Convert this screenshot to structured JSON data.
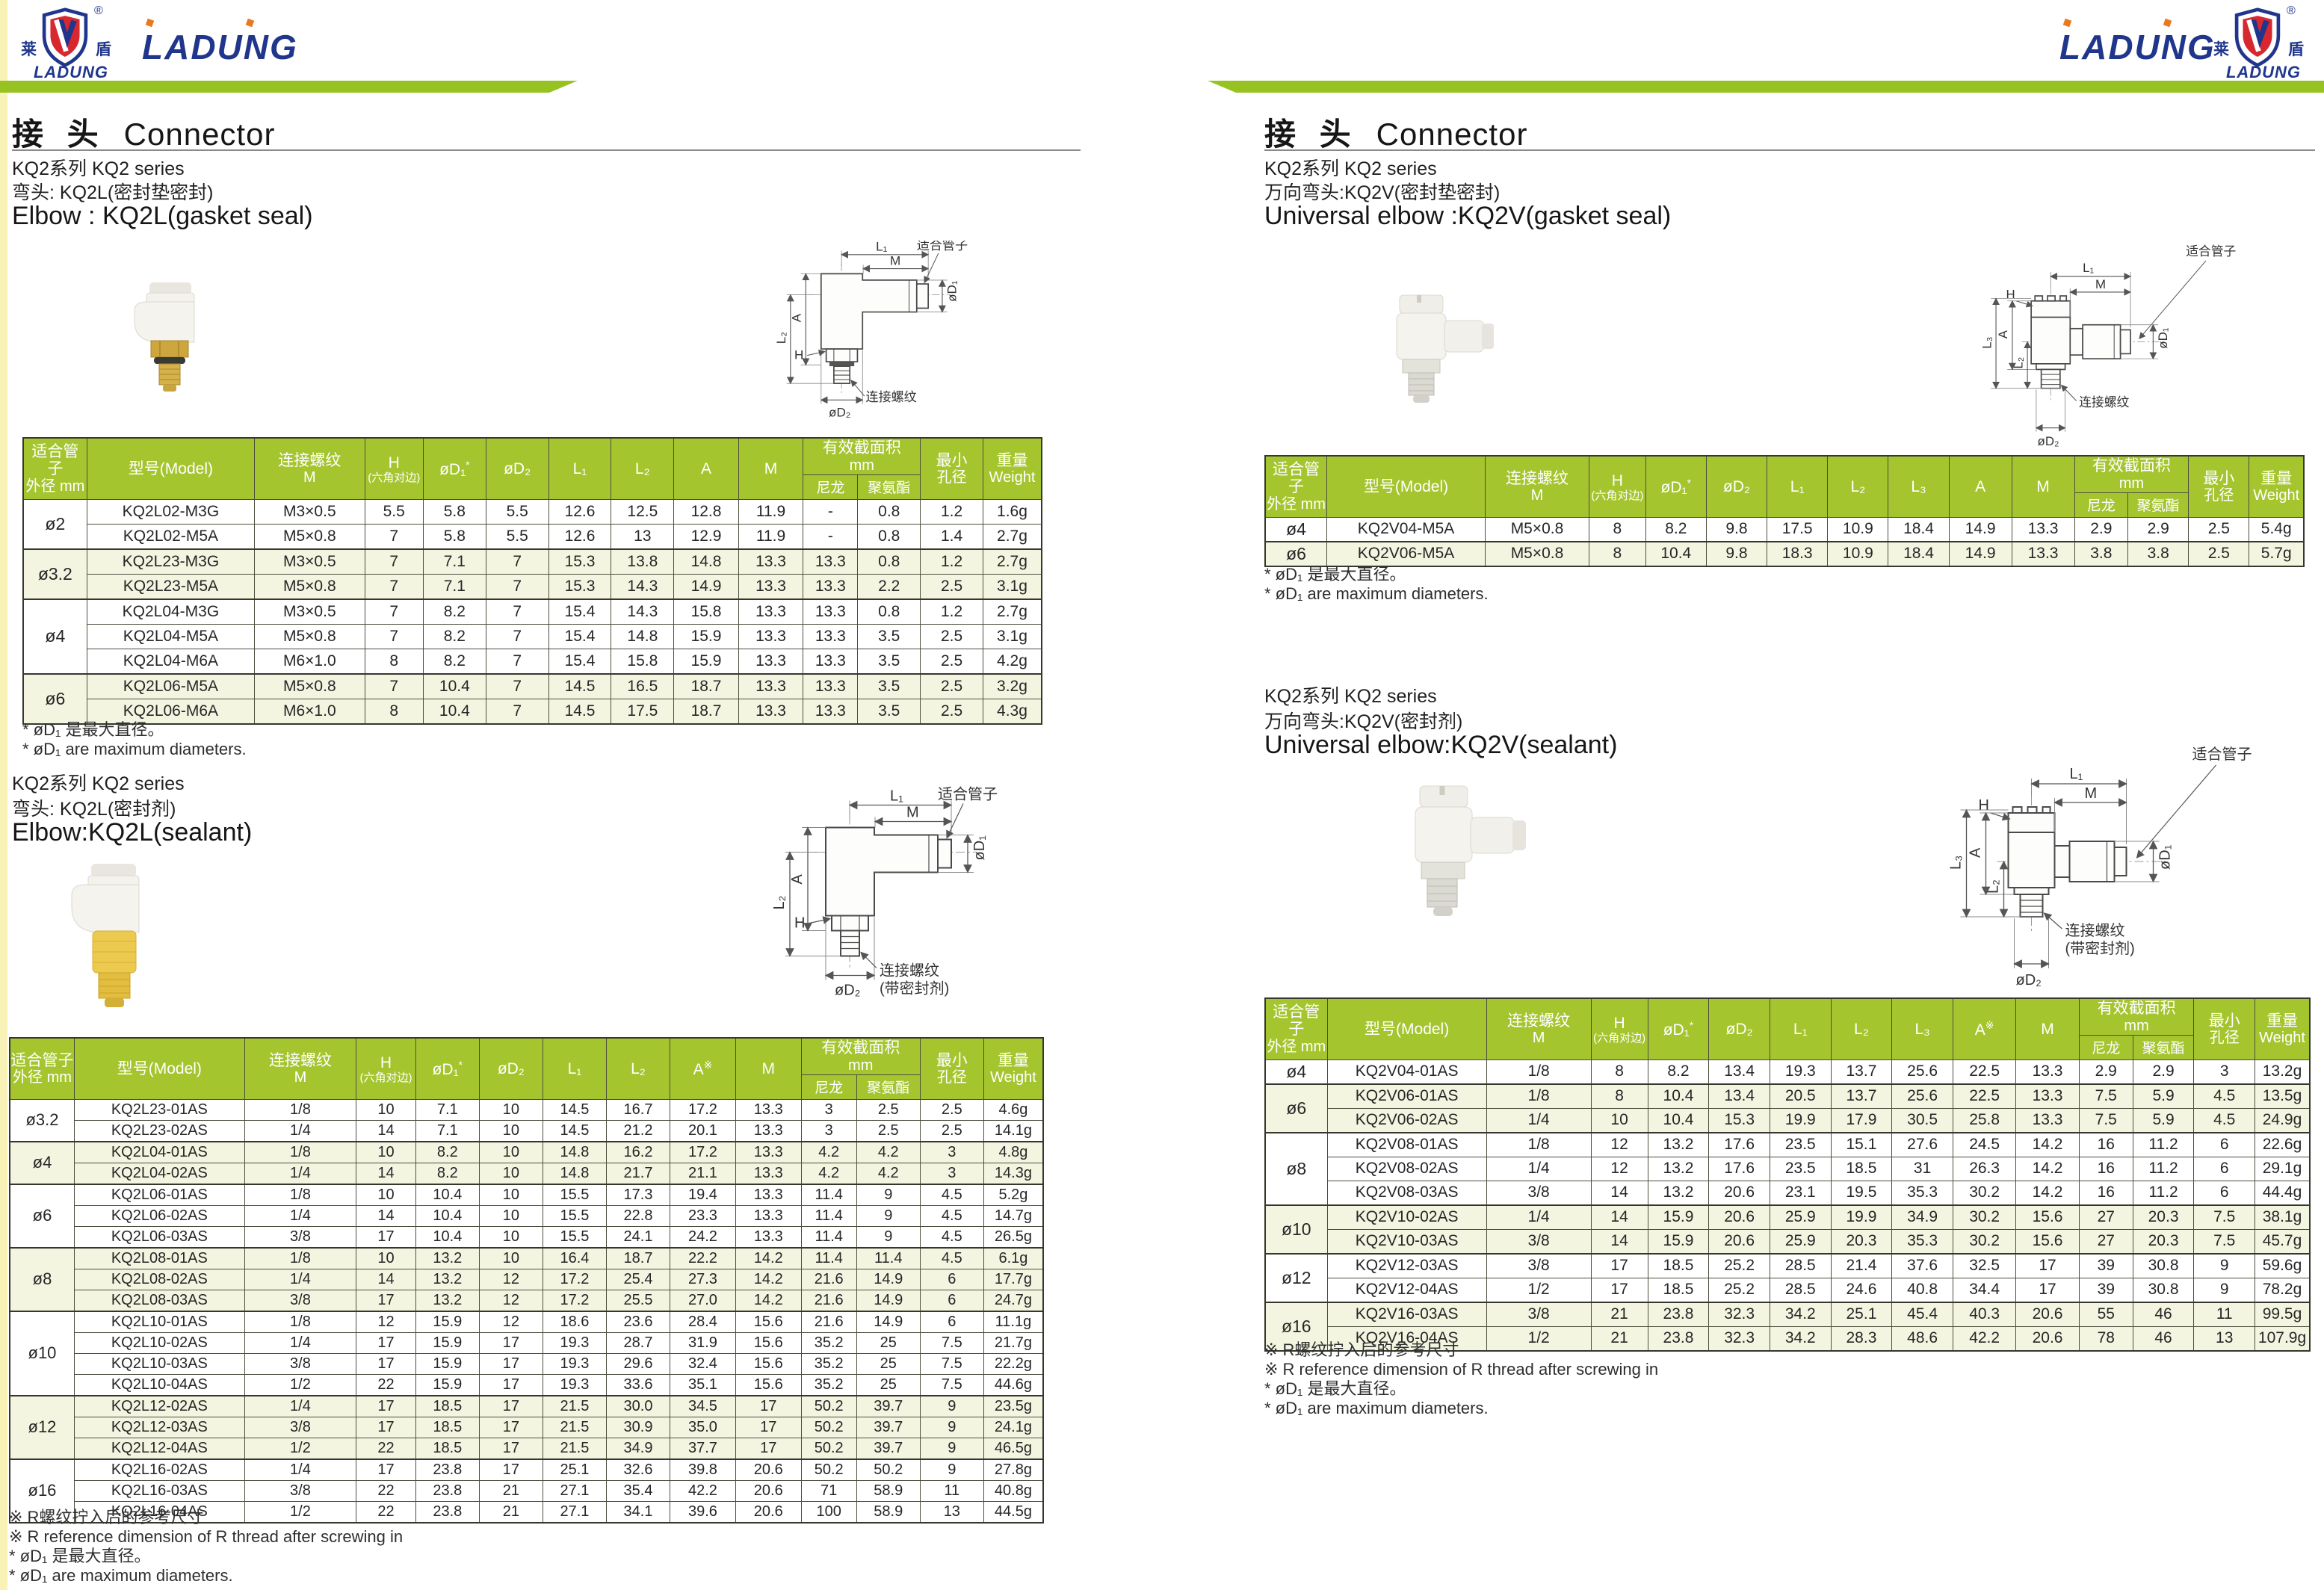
{
  "brand": {
    "cn_left": "莱",
    "cn_right": "盾",
    "shield_name": "LADUNG",
    "reg": "®",
    "wordmark": "LADUNG"
  },
  "colors": {
    "table_header_green": "#a5c52f",
    "bar_green": "#97c322",
    "row_alt": "#f4f5e1",
    "logo_blue": "#20368c",
    "logo_orange": "#e87a1e",
    "logo_red": "#d7282f"
  },
  "left_page": {
    "title_cn": "接 头",
    "title_en": "Connector",
    "s1": {
      "series": "KQ2系列   KQ2 series",
      "type": "弯头: KQ2L(密封垫密封)",
      "heading": "Elbow : KQ2L(gasket seal)",
      "notes": [
        "* øD₁ 是最大直径。",
        "* øD₁ are maximum diameters."
      ]
    },
    "s2": {
      "series": "KQ2系列   KQ2 series",
      "type": "弯头: KQ2L(密封剂)",
      "heading": "Elbow:KQ2L(sealant)",
      "notes": [
        "※ R螺纹拧入后的参考尺寸",
        "※ R reference dimension of R thread after screwing in",
        "* øD₁ 是最大直径。",
        "* øD₁ are maximum diameters."
      ]
    }
  },
  "right_page": {
    "title_cn": "接 头",
    "title_en": "Connector",
    "s1": {
      "series": "KQ2系列   KQ2 series",
      "type": "万向弯头:KQ2V(密封垫密封)",
      "heading": "Universal elbow :KQ2V(gasket seal)",
      "notes": [
        "* øD₁ 是最大直径。",
        "* øD₁ are maximum diameters."
      ]
    },
    "s2": {
      "series": "KQ2系列   KQ2 series",
      "type": "万向弯头:KQ2V(密封剂)",
      "heading": "Universal elbow:KQ2V(sealant)",
      "notes": [
        "※ R螺纹拧入后的参考尺寸",
        "※ R reference dimension of R thread after screwing in",
        "* øD₁ 是最大直径。",
        "* øD₁ are maximum diameters."
      ]
    }
  },
  "drawing": {
    "fit_tube": "适合管子",
    "thread": "连接螺纹",
    "sealant_note": "(带密封剂)",
    "L1": "L₁",
    "L2": "L₂",
    "L3": "L₃",
    "A": "A",
    "M": "M",
    "H": "H",
    "D1": "øD₁",
    "D2": "øD₂"
  },
  "header_labels": {
    "tube1": "适合管子",
    "tube2": "外径 mm",
    "model": "型号(Model)",
    "thread1": "连接螺纹",
    "thread2": "M",
    "h1": "H",
    "h2": "(六角对边)",
    "d1": "øD₁",
    "star": "*",
    "d2": "øD₂",
    "l1": "L₁",
    "l2": "L₂",
    "l3": "L₃",
    "a": "A",
    "refmark": "※",
    "m": "M",
    "eff1": "有效截面积",
    "eff2": "mm",
    "nylon": "尼龙",
    "pu": "聚氨酯",
    "min1": "最小",
    "min2": "孔径",
    "w1": "重量",
    "w2": "Weight"
  },
  "tables": {
    "left_gasket": {
      "l3": false,
      "a_sup": false,
      "groups": [
        {
          "size": "ø2",
          "rows": [
            [
              "KQ2L02-M3G",
              "M3×0.5",
              "5.5",
              "5.8",
              "5.5",
              "12.6",
              "12.5",
              "12.8",
              "11.9",
              "-",
              "0.8",
              "1.2",
              "1.6g"
            ],
            [
              "KQ2L02-M5A",
              "M5×0.8",
              "7",
              "5.8",
              "5.5",
              "12.6",
              "13",
              "12.9",
              "11.9",
              "-",
              "0.8",
              "1.4",
              "2.7g"
            ]
          ]
        },
        {
          "size": "ø3.2",
          "rows": [
            [
              "KQ2L23-M3G",
              "M3×0.5",
              "7",
              "7.1",
              "7",
              "15.3",
              "13.8",
              "14.8",
              "13.3",
              "13.3",
              "0.8",
              "1.2",
              "2.7g"
            ],
            [
              "KQ2L23-M5A",
              "M5×0.8",
              "7",
              "7.1",
              "7",
              "15.3",
              "14.3",
              "14.9",
              "13.3",
              "13.3",
              "2.2",
              "2.5",
              "3.1g"
            ]
          ]
        },
        {
          "size": "ø4",
          "rows": [
            [
              "KQ2L04-M3G",
              "M3×0.5",
              "7",
              "8.2",
              "7",
              "15.4",
              "14.3",
              "15.8",
              "13.3",
              "13.3",
              "0.8",
              "1.2",
              "2.7g"
            ],
            [
              "KQ2L04-M5A",
              "M5×0.8",
              "7",
              "8.2",
              "7",
              "15.4",
              "14.8",
              "15.9",
              "13.3",
              "13.3",
              "3.5",
              "2.5",
              "3.1g"
            ],
            [
              "KQ2L04-M6A",
              "M6×1.0",
              "8",
              "8.2",
              "7",
              "15.4",
              "15.8",
              "15.9",
              "13.3",
              "13.3",
              "3.5",
              "2.5",
              "4.2g"
            ]
          ]
        },
        {
          "size": "ø6",
          "rows": [
            [
              "KQ2L06-M5A",
              "M5×0.8",
              "7",
              "10.4",
              "7",
              "14.5",
              "16.5",
              "18.7",
              "13.3",
              "13.3",
              "3.5",
              "2.5",
              "3.2g"
            ],
            [
              "KQ2L06-M6A",
              "M6×1.0",
              "8",
              "10.4",
              "7",
              "14.5",
              "17.5",
              "18.7",
              "13.3",
              "13.3",
              "3.5",
              "2.5",
              "4.3g"
            ]
          ]
        }
      ]
    },
    "left_sealant": {
      "l3": false,
      "a_sup": true,
      "groups": [
        {
          "size": "ø3.2",
          "rows": [
            [
              "KQ2L23-01AS",
              "1/8",
              "10",
              "7.1",
              "10",
              "14.5",
              "16.7",
              "17.2",
              "13.3",
              "3",
              "2.5",
              "2.5",
              "4.6g"
            ],
            [
              "KQ2L23-02AS",
              "1/4",
              "14",
              "7.1",
              "10",
              "14.5",
              "21.2",
              "20.1",
              "13.3",
              "3",
              "2.5",
              "2.5",
              "14.1g"
            ]
          ]
        },
        {
          "size": "ø4",
          "rows": [
            [
              "KQ2L04-01AS",
              "1/8",
              "10",
              "8.2",
              "10",
              "14.8",
              "16.2",
              "17.2",
              "13.3",
              "4.2",
              "4.2",
              "3",
              "4.8g"
            ],
            [
              "KQ2L04-02AS",
              "1/4",
              "14",
              "8.2",
              "10",
              "14.8",
              "21.7",
              "21.1",
              "13.3",
              "4.2",
              "4.2",
              "3",
              "14.3g"
            ]
          ]
        },
        {
          "size": "ø6",
          "rows": [
            [
              "KQ2L06-01AS",
              "1/8",
              "10",
              "10.4",
              "10",
              "15.5",
              "17.3",
              "19.4",
              "13.3",
              "11.4",
              "9",
              "4.5",
              "5.2g"
            ],
            [
              "KQ2L06-02AS",
              "1/4",
              "14",
              "10.4",
              "10",
              "15.5",
              "22.8",
              "23.3",
              "13.3",
              "11.4",
              "9",
              "4.5",
              "14.7g"
            ],
            [
              "KQ2L06-03AS",
              "3/8",
              "17",
              "10.4",
              "10",
              "15.5",
              "24.1",
              "24.2",
              "13.3",
              "11.4",
              "9",
              "4.5",
              "26.5g"
            ]
          ]
        },
        {
          "size": "ø8",
          "rows": [
            [
              "KQ2L08-01AS",
              "1/8",
              "10",
              "13.2",
              "10",
              "16.4",
              "18.7",
              "22.2",
              "14.2",
              "11.4",
              "11.4",
              "4.5",
              "6.1g"
            ],
            [
              "KQ2L08-02AS",
              "1/4",
              "14",
              "13.2",
              "12",
              "17.2",
              "25.4",
              "27.3",
              "14.2",
              "21.6",
              "14.9",
              "6",
              "17.7g"
            ],
            [
              "KQ2L08-03AS",
              "3/8",
              "17",
              "13.2",
              "12",
              "17.2",
              "25.5",
              "27.0",
              "14.2",
              "21.6",
              "14.9",
              "6",
              "24.7g"
            ]
          ]
        },
        {
          "size": "ø10",
          "rows": [
            [
              "KQ2L10-01AS",
              "1/8",
              "12",
              "15.9",
              "12",
              "18.6",
              "23.6",
              "28.4",
              "15.6",
              "21.6",
              "14.9",
              "6",
              "11.1g"
            ],
            [
              "KQ2L10-02AS",
              "1/4",
              "17",
              "15.9",
              "17",
              "19.3",
              "28.7",
              "31.9",
              "15.6",
              "35.2",
              "25",
              "7.5",
              "21.7g"
            ],
            [
              "KQ2L10-03AS",
              "3/8",
              "17",
              "15.9",
              "17",
              "19.3",
              "29.6",
              "32.4",
              "15.6",
              "35.2",
              "25",
              "7.5",
              "22.2g"
            ],
            [
              "KQ2L10-04AS",
              "1/2",
              "22",
              "15.9",
              "17",
              "19.3",
              "33.6",
              "35.1",
              "15.6",
              "35.2",
              "25",
              "7.5",
              "44.6g"
            ]
          ]
        },
        {
          "size": "ø12",
          "rows": [
            [
              "KQ2L12-02AS",
              "1/4",
              "17",
              "18.5",
              "17",
              "21.5",
              "30.0",
              "34.5",
              "17",
              "50.2",
              "39.7",
              "9",
              "23.5g"
            ],
            [
              "KQ2L12-03AS",
              "3/8",
              "17",
              "18.5",
              "17",
              "21.5",
              "30.9",
              "35.0",
              "17",
              "50.2",
              "39.7",
              "9",
              "24.1g"
            ],
            [
              "KQ2L12-04AS",
              "1/2",
              "22",
              "18.5",
              "17",
              "21.5",
              "34.9",
              "37.7",
              "17",
              "50.2",
              "39.7",
              "9",
              "46.5g"
            ]
          ]
        },
        {
          "size": "ø16",
          "rows": [
            [
              "KQ2L16-02AS",
              "1/4",
              "17",
              "23.8",
              "17",
              "25.1",
              "32.6",
              "39.8",
              "20.6",
              "50.2",
              "50.2",
              "9",
              "27.8g"
            ],
            [
              "KQ2L16-03AS",
              "3/8",
              "22",
              "23.8",
              "21",
              "27.1",
              "35.4",
              "42.2",
              "20.6",
              "71",
              "58.9",
              "11",
              "40.8g"
            ],
            [
              "KQ2L16-04AS",
              "1/2",
              "22",
              "23.8",
              "21",
              "27.1",
              "34.1",
              "39.6",
              "20.6",
              "100",
              "58.9",
              "13",
              "44.5g"
            ]
          ]
        }
      ]
    },
    "right_gasket": {
      "l3": true,
      "a_sup": false,
      "groups": [
        {
          "size": "ø4",
          "rows": [
            [
              "KQ2V04-M5A",
              "M5×0.8",
              "8",
              "8.2",
              "9.8",
              "17.5",
              "10.9",
              "18.4",
              "14.9",
              "13.3",
              "2.9",
              "2.9",
              "2.5",
              "5.4g"
            ]
          ]
        },
        {
          "size": "ø6",
          "rows": [
            [
              "KQ2V06-M5A",
              "M5×0.8",
              "8",
              "10.4",
              "9.8",
              "18.3",
              "10.9",
              "18.4",
              "14.9",
              "13.3",
              "3.8",
              "3.8",
              "2.5",
              "5.7g"
            ]
          ]
        }
      ]
    },
    "right_sealant": {
      "l3": true,
      "a_sup": true,
      "groups": [
        {
          "size": "ø4",
          "rows": [
            [
              "KQ2V04-01AS",
              "1/8",
              "8",
              "8.2",
              "13.4",
              "19.3",
              "13.7",
              "25.6",
              "22.5",
              "13.3",
              "2.9",
              "2.9",
              "3",
              "13.2g"
            ]
          ]
        },
        {
          "size": "ø6",
          "rows": [
            [
              "KQ2V06-01AS",
              "1/8",
              "8",
              "10.4",
              "13.4",
              "20.5",
              "13.7",
              "25.6",
              "22.5",
              "13.3",
              "7.5",
              "5.9",
              "4.5",
              "13.5g"
            ],
            [
              "KQ2V06-02AS",
              "1/4",
              "10",
              "10.4",
              "15.3",
              "19.9",
              "17.9",
              "30.5",
              "25.8",
              "13.3",
              "7.5",
              "5.9",
              "4.5",
              "24.9g"
            ]
          ]
        },
        {
          "size": "ø8",
          "rows": [
            [
              "KQ2V08-01AS",
              "1/8",
              "12",
              "13.2",
              "17.6",
              "23.5",
              "15.1",
              "27.6",
              "24.5",
              "14.2",
              "16",
              "11.2",
              "6",
              "22.6g"
            ],
            [
              "KQ2V08-02AS",
              "1/4",
              "12",
              "13.2",
              "17.6",
              "23.5",
              "18.5",
              "31",
              "26.3",
              "14.2",
              "16",
              "11.2",
              "6",
              "29.1g"
            ],
            [
              "KQ2V08-03AS",
              "3/8",
              "14",
              "13.2",
              "20.6",
              "23.1",
              "19.5",
              "35.3",
              "30.2",
              "14.2",
              "16",
              "11.2",
              "6",
              "44.4g"
            ]
          ]
        },
        {
          "size": "ø10",
          "rows": [
            [
              "KQ2V10-02AS",
              "1/4",
              "14",
              "15.9",
              "20.6",
              "25.9",
              "19.9",
              "34.9",
              "30.2",
              "15.6",
              "27",
              "20.3",
              "7.5",
              "38.1g"
            ],
            [
              "KQ2V10-03AS",
              "3/8",
              "14",
              "15.9",
              "20.6",
              "25.9",
              "20.3",
              "35.3",
              "30.2",
              "15.6",
              "27",
              "20.3",
              "7.5",
              "45.7g"
            ]
          ]
        },
        {
          "size": "ø12",
          "rows": [
            [
              "KQ2V12-03AS",
              "3/8",
              "17",
              "18.5",
              "25.2",
              "28.5",
              "21.4",
              "37.6",
              "32.5",
              "17",
              "39",
              "30.8",
              "9",
              "59.6g"
            ],
            [
              "KQ2V12-04AS",
              "1/2",
              "17",
              "18.5",
              "25.2",
              "28.5",
              "24.6",
              "40.8",
              "34.4",
              "17",
              "39",
              "30.8",
              "9",
              "78.2g"
            ]
          ]
        },
        {
          "size": "ø16",
          "rows": [
            [
              "KQ2V16-03AS",
              "3/8",
              "21",
              "23.8",
              "32.3",
              "34.2",
              "25.1",
              "45.4",
              "40.3",
              "20.6",
              "55",
              "46",
              "11",
              "99.5g"
            ],
            [
              "KQ2V16-04AS",
              "1/2",
              "21",
              "23.8",
              "32.3",
              "34.2",
              "28.3",
              "48.6",
              "42.2",
              "20.6",
              "78",
              "46",
              "13",
              "107.9g"
            ]
          ]
        }
      ]
    }
  }
}
